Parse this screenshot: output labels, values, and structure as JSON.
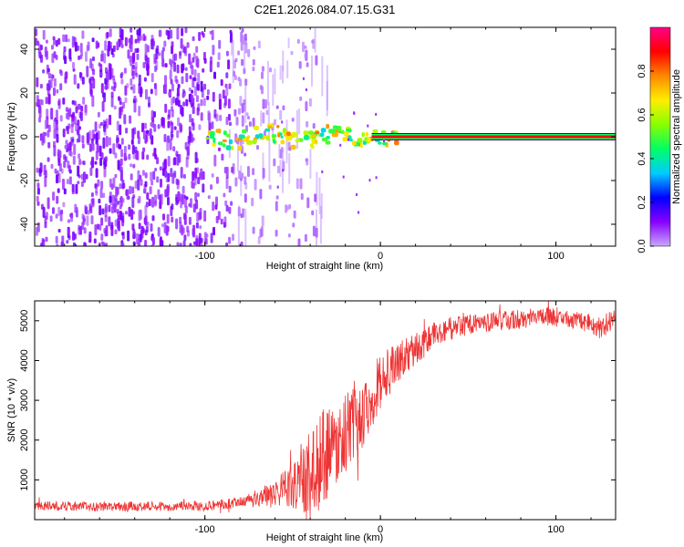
{
  "title": "C2E1.2026.084.07.15.G31",
  "chart_data": [
    {
      "type": "heatmap",
      "xlabel": "Height of straight line (km)",
      "ylabel": "Frequency (Hz)",
      "xlim": [
        -197,
        134
      ],
      "ylim": [
        -50,
        50
      ],
      "xticks": [
        -100,
        0,
        100
      ],
      "xtick_labels": [
        "-100",
        "0",
        "100"
      ],
      "yticks": [
        -40,
        -20,
        0,
        20,
        40
      ],
      "ytick_labels": [
        "-40",
        "-20",
        "0",
        "20",
        "40"
      ],
      "colorbar": {
        "label": "Normalized spectral amplitude",
        "range": [
          0,
          1
        ],
        "ticks": [
          0.0,
          0.2,
          0.4,
          0.6,
          0.8
        ],
        "tick_labels": [
          "0.0",
          "0.2",
          "0.4",
          "0.6",
          "0.8"
        ],
        "colors": [
          "#c8a8ff",
          "#8800ff",
          "#0000ff",
          "#00ccff",
          "#00ff66",
          "#88ff00",
          "#ffee00",
          "#ff8800",
          "#ff0000",
          "#ff0088"
        ]
      },
      "noise_region_km": [
        -197,
        -37
      ],
      "signal_line_hz": 0,
      "signal_start_km": -100
    },
    {
      "type": "line",
      "xlabel": "Height of straight line (km)",
      "ylabel": "SNR (10 * v/v)",
      "xlim": [
        -197,
        134
      ],
      "ylim": [
        0,
        5500
      ],
      "xticks": [
        -100,
        0,
        100
      ],
      "xtick_labels": [
        "-100",
        "0",
        "100"
      ],
      "yticks": [
        1000,
        2000,
        3000,
        4000,
        5000
      ],
      "ytick_labels": [
        "1000",
        "2000",
        "3000",
        "4000",
        "5000"
      ],
      "color": "#ee3333",
      "series": [
        {
          "name": "SNR",
          "x": [
            -197,
            -180,
            -160,
            -140,
            -120,
            -100,
            -80,
            -70,
            -60,
            -50,
            -45,
            -40,
            -35,
            -30,
            -25,
            -20,
            -15,
            -10,
            -5,
            0,
            5,
            10,
            20,
            30,
            40,
            50,
            60,
            70,
            80,
            90,
            100,
            110,
            120,
            125,
            130,
            134
          ],
          "y": [
            350,
            340,
            330,
            340,
            330,
            350,
            420,
            530,
            700,
            850,
            950,
            1050,
            1400,
            1700,
            1900,
            2200,
            2400,
            2700,
            3100,
            3500,
            3700,
            3950,
            4300,
            4600,
            4800,
            4900,
            4950,
            5000,
            5050,
            5100,
            5100,
            5000,
            4950,
            4800,
            5000,
            5100
          ],
          "amp": [
            120,
            120,
            120,
            120,
            120,
            130,
            150,
            250,
            350,
            550,
            850,
            1200,
            1400,
            1100,
            1000,
            1000,
            900,
            900,
            800,
            700,
            600,
            500,
            400,
            350,
            300,
            250,
            250,
            250,
            250,
            250,
            250,
            250,
            250,
            300,
            300,
            250
          ]
        }
      ]
    }
  ]
}
